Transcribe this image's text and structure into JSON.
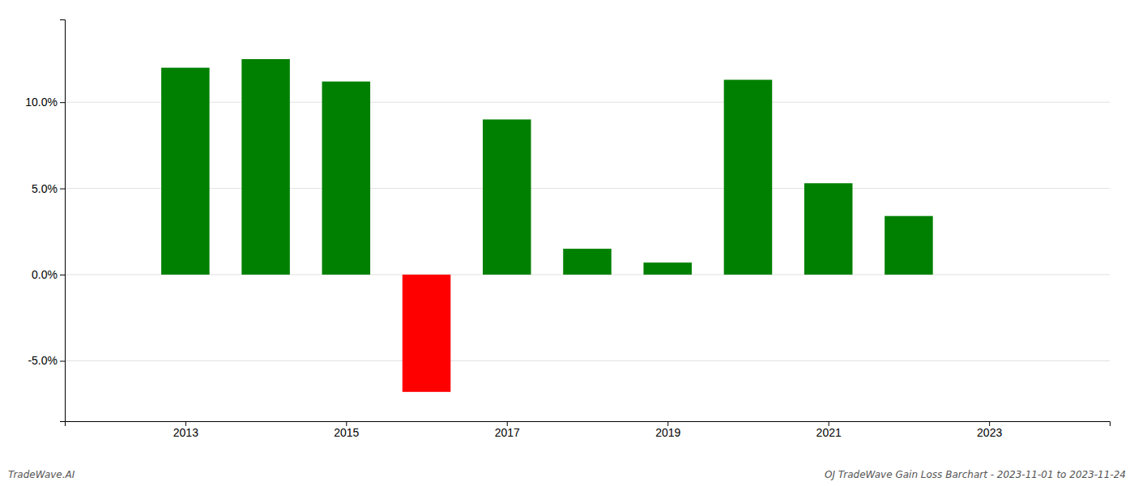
{
  "chart_data": {
    "type": "bar",
    "x": [
      2013,
      2014,
      2015,
      2016,
      2017,
      2018,
      2019,
      2020,
      2021,
      2022
    ],
    "values": [
      0.12,
      0.125,
      0.112,
      -0.068,
      0.09,
      0.015,
      0.007,
      0.113,
      0.053,
      0.034
    ],
    "colors": [
      "#008000",
      "#008000",
      "#008000",
      "#ff0000",
      "#008000",
      "#008000",
      "#008000",
      "#008000",
      "#008000",
      "#008000"
    ],
    "xlim": [
      2011.5,
      2024.5
    ],
    "xticks": [
      2013,
      2015,
      2017,
      2019,
      2021,
      2023
    ],
    "ylim": [
      -0.085,
      0.148
    ],
    "yticks": [
      {
        "value": -0.05,
        "label": "-5.0%"
      },
      {
        "value": 0.0,
        "label": "0.0%"
      },
      {
        "value": 0.05,
        "label": "5.0%"
      },
      {
        "value": 0.1,
        "label": "10.0%"
      }
    ],
    "grid": true,
    "annotations": [
      "TradeWave.AI",
      "OJ TradeWave Gain Loss Barchart - 2023-11-01 to 2023-11-24"
    ]
  }
}
